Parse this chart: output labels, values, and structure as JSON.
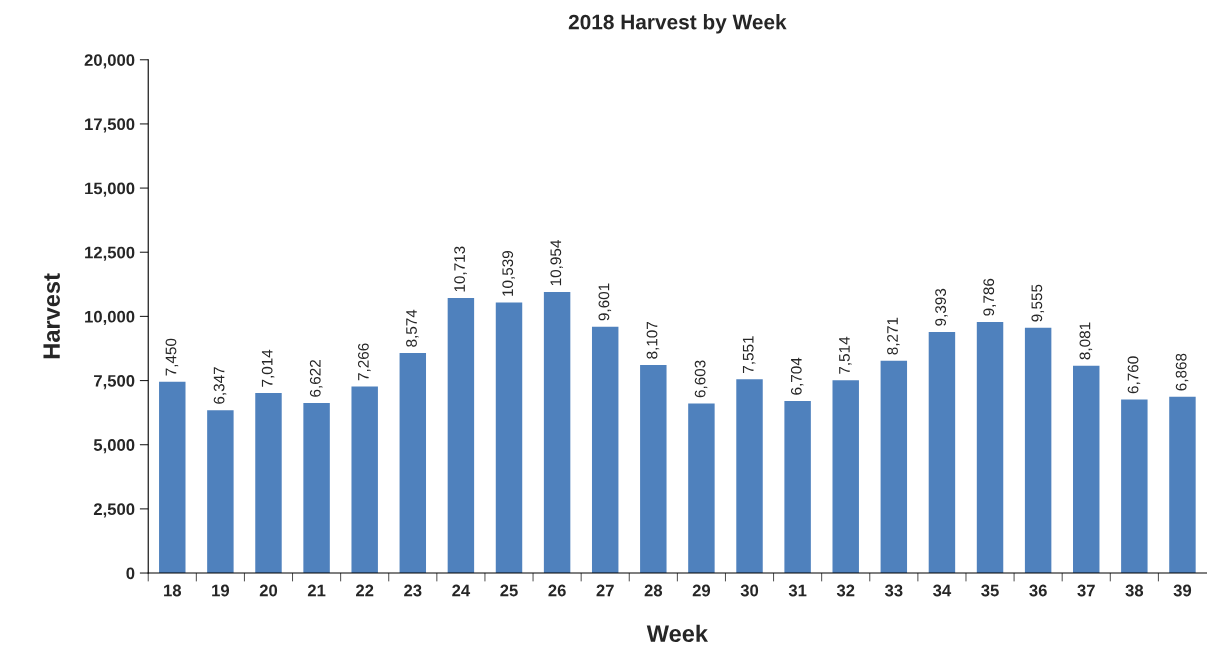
{
  "chart_data": {
    "type": "bar",
    "title": "2018 Harvest by Week",
    "xlabel": "Week",
    "ylabel": "Harvest",
    "categories": [
      "18",
      "19",
      "20",
      "21",
      "22",
      "23",
      "24",
      "25",
      "26",
      "27",
      "28",
      "29",
      "30",
      "31",
      "32",
      "33",
      "34",
      "35",
      "36",
      "37",
      "38",
      "39"
    ],
    "values": [
      7450,
      6347,
      7014,
      6622,
      7266,
      8574,
      10713,
      10539,
      10954,
      9601,
      8107,
      6603,
      7551,
      6704,
      7514,
      8271,
      9393,
      9786,
      9555,
      8081,
      6760,
      6868
    ],
    "color": "#4f81bd",
    "ylim": [
      0,
      20000
    ],
    "yticks": [
      0,
      {
        "value": 2500,
        "label": "2,500"
      },
      {
        "value": 5000,
        "label": "5,000"
      },
      {
        "value": 7500,
        "label": "7,500"
      },
      {
        "value": 10000,
        "label": "10,000"
      },
      {
        "value": 12500,
        "label": "12,500"
      },
      {
        "value": 15000,
        "label": "15,000"
      },
      {
        "value": 17500,
        "label": "17,500"
      },
      {
        "value": 20000,
        "label": "20,000"
      }
    ],
    "value_labels": [
      "7,450",
      "6,347",
      "7,014",
      "6,622",
      "7,266",
      "8,574",
      "10,713",
      "10,539",
      "10,954",
      "9,601",
      "8,107",
      "6,603",
      "7,551",
      "6,704",
      "7,514",
      "8,271",
      "9,393",
      "9,786",
      "9,555",
      "8,081",
      "6,760",
      "6,868"
    ],
    "grid": false,
    "legend": false
  }
}
